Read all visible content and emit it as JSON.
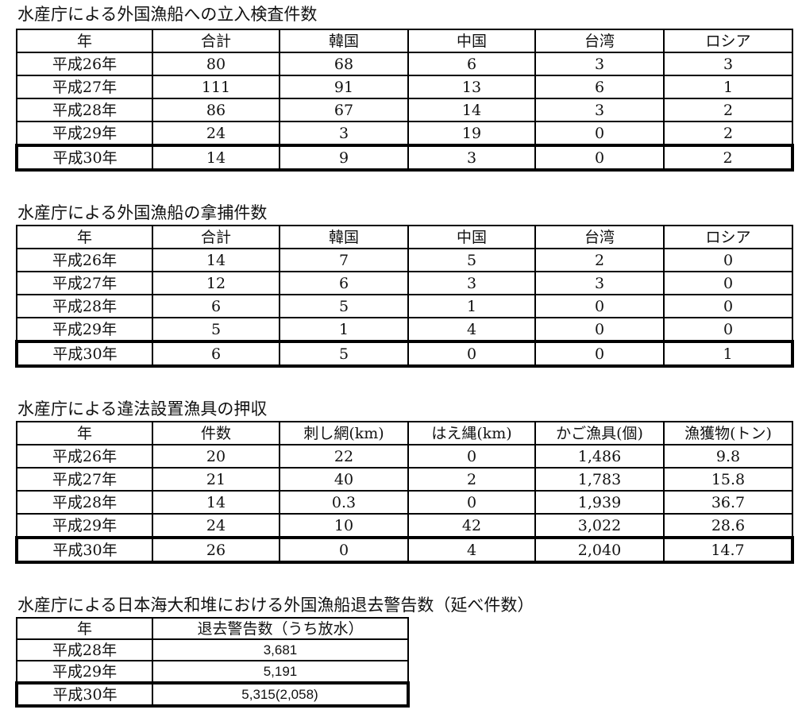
{
  "tables": [
    {
      "title": "水産庁による外国漁船への立入検査件数",
      "headers": [
        "年",
        "合計",
        "韓国",
        "中国",
        "台湾",
        "ロシア"
      ],
      "rows": [
        [
          "平成26年",
          "80",
          "68",
          "6",
          "3",
          "3"
        ],
        [
          "平成27年",
          "111",
          "91",
          "13",
          "6",
          "1"
        ],
        [
          "平成28年",
          "86",
          "67",
          "14",
          "3",
          "2"
        ],
        [
          "平成29年",
          "24",
          "3",
          "19",
          "0",
          "2"
        ],
        [
          "平成30年",
          "14",
          "9",
          "3",
          "0",
          "2"
        ]
      ]
    },
    {
      "title": "水産庁による外国漁船の拿捕件数",
      "headers": [
        "年",
        "合計",
        "韓国",
        "中国",
        "台湾",
        "ロシア"
      ],
      "rows": [
        [
          "平成26年",
          "14",
          "7",
          "5",
          "2",
          "0"
        ],
        [
          "平成27年",
          "12",
          "6",
          "3",
          "3",
          "0"
        ],
        [
          "平成28年",
          "6",
          "5",
          "1",
          "0",
          "0"
        ],
        [
          "平成29年",
          "5",
          "1",
          "4",
          "0",
          "0"
        ],
        [
          "平成30年",
          "6",
          "5",
          "0",
          "0",
          "1"
        ]
      ]
    },
    {
      "title": "水産庁による違法設置漁具の押収",
      "headers": [
        "年",
        "件数",
        "刺し網(km)",
        "はえ縄(km)",
        "かご漁具(個)",
        "漁獲物(トン)"
      ],
      "rows": [
        [
          "平成26年",
          "20",
          "22",
          "0",
          "1,486",
          "9.8"
        ],
        [
          "平成27年",
          "21",
          "40",
          "2",
          "1,783",
          "15.8"
        ],
        [
          "平成28年",
          "14",
          "0.3",
          "0",
          "1,939",
          "36.7"
        ],
        [
          "平成29年",
          "24",
          "10",
          "42",
          "3,022",
          "28.6"
        ],
        [
          "平成30年",
          "26",
          "0",
          "4",
          "2,040",
          "14.7"
        ]
      ]
    },
    {
      "title": "水産庁による日本海大和堆における外国漁船退去警告数（延べ件数）",
      "headers": [
        "年",
        "退去警告数（うち放水）"
      ],
      "rows": [
        [
          "平成28年",
          "3,681"
        ],
        [
          "平成29年",
          "5,191"
        ],
        [
          "平成30年",
          "5,315(2,058)"
        ]
      ]
    }
  ]
}
